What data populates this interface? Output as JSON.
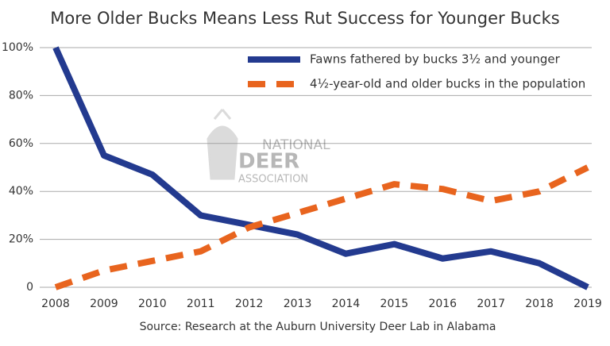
{
  "chart_data": {
    "type": "line",
    "title": "More Older Bucks Means Less Rut Success for Younger Bucks",
    "source": "Source: Research at the Auburn University Deer Lab in Alabama",
    "watermark": [
      "NATIONAL",
      "DEER",
      "ASSOCIATION"
    ],
    "categories": [
      "2008",
      "2009",
      "2010",
      "2011",
      "2012",
      "2013",
      "2014",
      "2015",
      "2016",
      "2017",
      "2018",
      "2019"
    ],
    "series": [
      {
        "name": "Fawns fathered by bucks 3½ and younger",
        "color": "#233a8f",
        "dash": "solid",
        "values": [
          100,
          55,
          47,
          30,
          26,
          22,
          14,
          18,
          12,
          15,
          10,
          0
        ]
      },
      {
        "name": "4½-year-old and older bucks in the population",
        "color": "#e8641e",
        "dash": "dashed",
        "values": [
          0,
          7,
          11,
          15,
          25,
          31,
          37,
          43,
          41,
          36,
          40,
          50
        ]
      }
    ],
    "ylim": [
      0,
      100
    ],
    "yticks": [
      0,
      {
        "value": 20,
        "label": "20%"
      },
      {
        "value": 40,
        "label": "40%"
      },
      {
        "value": 60,
        "label": "60%"
      },
      {
        "value": 80,
        "label": "80%"
      },
      {
        "value": 100,
        "label": "100%"
      }
    ],
    "grid": true,
    "legend": "top-right"
  }
}
